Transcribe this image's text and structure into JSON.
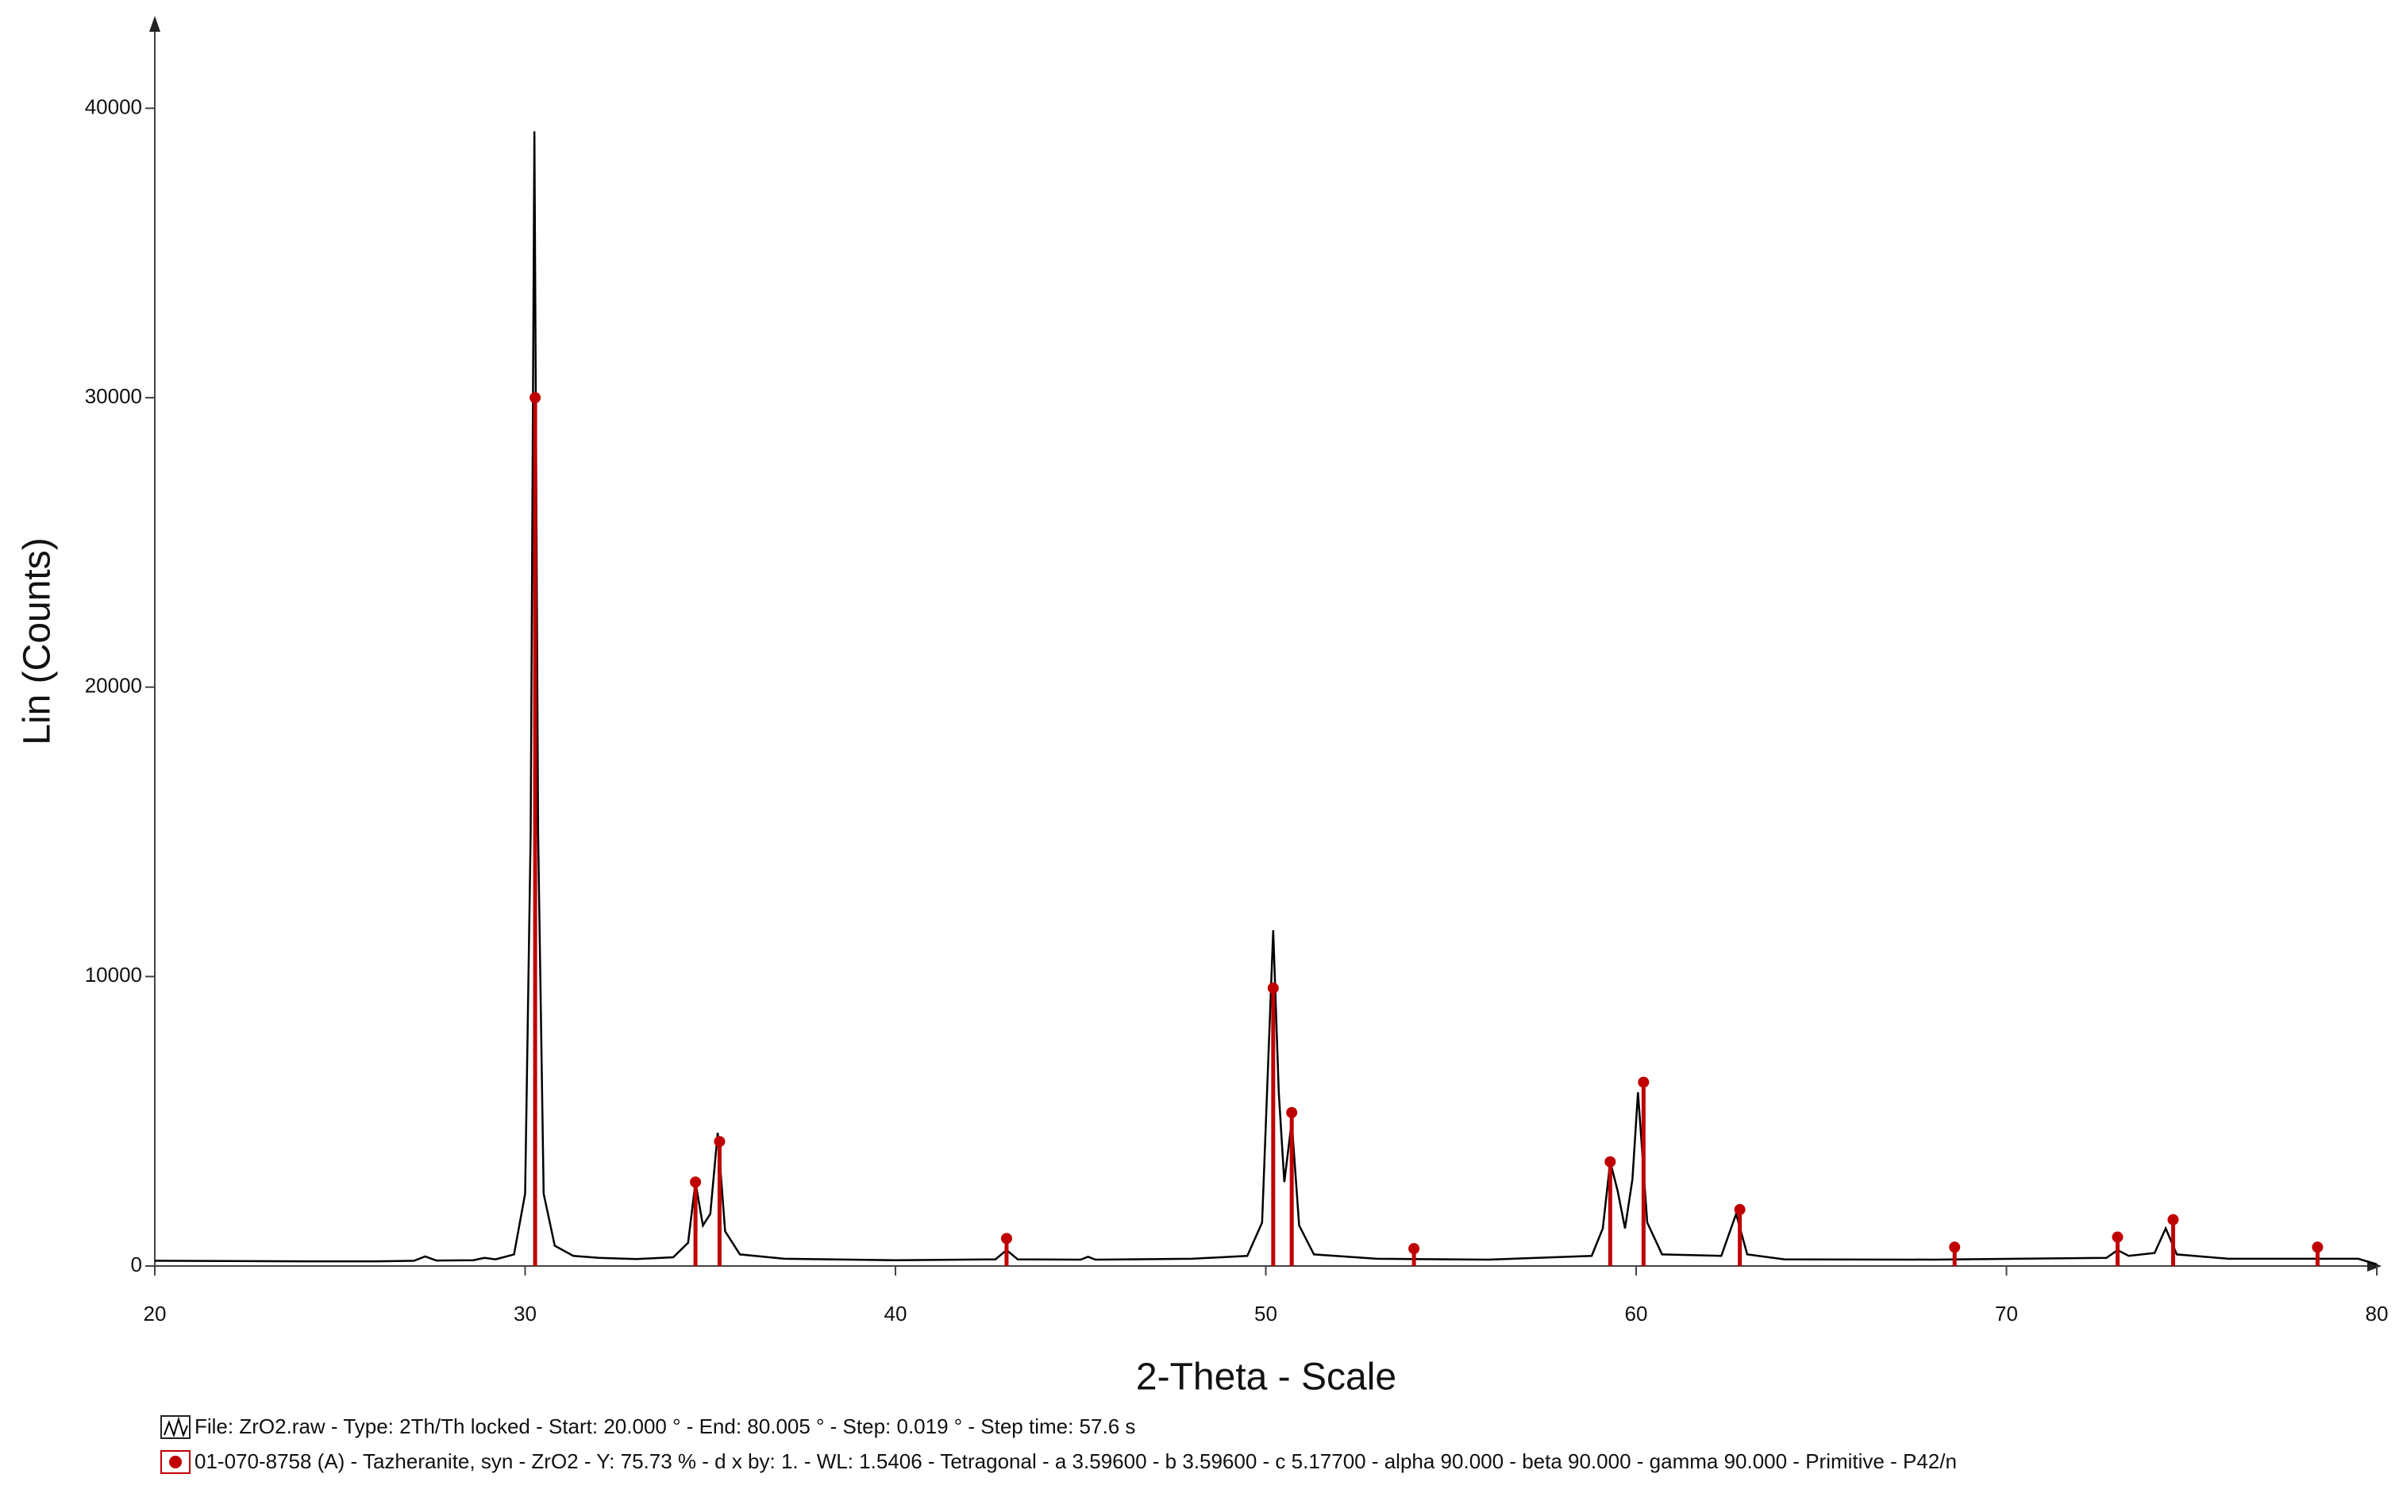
{
  "chart_data": {
    "type": "line",
    "x_label": "2-Theta - Scale",
    "y_label": "Lin (Counts)",
    "xlim": [
      20,
      80
    ],
    "xticks": [
      20,
      30,
      40,
      50,
      60,
      70,
      80
    ],
    "ylim": [
      0,
      43000
    ],
    "yticks": [
      0,
      10000,
      20000,
      30000,
      40000
    ],
    "series": [
      {
        "name": "File: ZrO2.raw - Type: 2Th/Th locked - Start: 20.000 ° - End: 80.005 ° - Step: 0.019 ° - Step time: 57.6 s",
        "color": "#000000",
        "mark": "line",
        "x": [
          20,
          22,
          24,
          26,
          27,
          27.3,
          27.6,
          28.6,
          28.9,
          29.2,
          29.7,
          30.0,
          30.15,
          30.25,
          30.35,
          30.5,
          30.8,
          31.3,
          32,
          33,
          34,
          34.4,
          34.6,
          34.8,
          35.0,
          35.2,
          35.4,
          35.8,
          37,
          40,
          42.7,
          43.0,
          43.3,
          45.0,
          45.2,
          45.4,
          48,
          49.5,
          49.9,
          50.2,
          50.35,
          50.5,
          50.7,
          50.9,
          51.3,
          53,
          56,
          58.8,
          59.1,
          59.3,
          59.5,
          59.7,
          59.9,
          60.05,
          60.3,
          60.7,
          62.3,
          62.7,
          63.0,
          64,
          68,
          72.7,
          73.0,
          73.3,
          74.0,
          74.3,
          74.6,
          76,
          79.5,
          80
        ],
        "values": [
          180,
          170,
          160,
          160,
          180,
          330,
          190,
          200,
          280,
          230,
          400,
          2500,
          15000,
          39200,
          15000,
          2500,
          700,
          350,
          280,
          240,
          300,
          800,
          2900,
          1400,
          1800,
          4600,
          1200,
          400,
          250,
          200,
          230,
          550,
          230,
          220,
          320,
          220,
          250,
          350,
          1500,
          11600,
          6000,
          2900,
          5000,
          1400,
          400,
          250,
          220,
          350,
          1300,
          3600,
          2600,
          1300,
          3000,
          6000,
          1500,
          400,
          350,
          1800,
          400,
          230,
          220,
          280,
          550,
          350,
          450,
          1300,
          400,
          250,
          250,
          60
        ]
      },
      {
        "name": "01-070-8758 (A) - Tazheranite, syn - ZrO2 - Y: 75.73 % - d x by: 1. - WL: 1.5406 - Tetragonal - a 3.59600 - b 3.59600 - c 5.17700 - alpha 90.000 - beta 90.000 - gamma 90.000 - Primitive - P42/n",
        "color": "#c00000",
        "mark": "stick",
        "x": [
          30.27,
          34.6,
          35.25,
          43.0,
          50.2,
          50.7,
          54.0,
          59.3,
          60.2,
          62.8,
          68.6,
          73.0,
          74.5,
          78.4
        ],
        "values": [
          30000,
          2900,
          4300,
          950,
          9600,
          5300,
          600,
          3600,
          6350,
          1950,
          650,
          1000,
          1600,
          650
        ]
      }
    ]
  }
}
